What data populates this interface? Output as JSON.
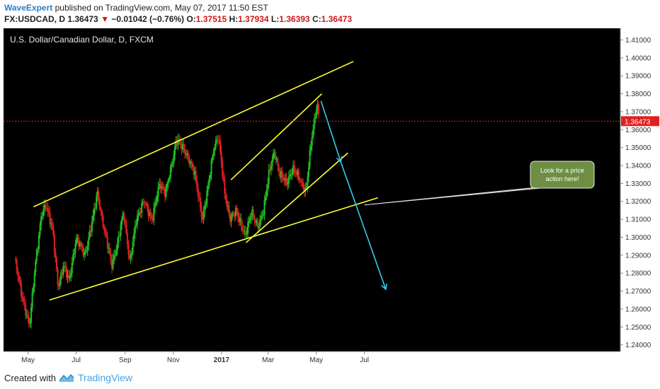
{
  "header": {
    "author": "WaveExpert",
    "published_text": "published on TradingView.com, May 07, 2017 11:50 EST",
    "symbol_text": "FX:USDCAD, D",
    "last_price": "1.36473",
    "change_text": "−0.01042 (−0.76%)",
    "o_label": "O:",
    "o_value": "1.37515",
    "h_label": "H:",
    "h_value": "1.37934",
    "l_label": "L:",
    "l_value": "1.36393",
    "c_label": "C:",
    "c_value": "1.36473"
  },
  "footer": {
    "created_with": "Created with",
    "brand": "TradingView"
  },
  "colors": {
    "background": "#000000",
    "up_candle": "#22c022",
    "down_candle": "#e02020",
    "trendline": "#ffff33",
    "projection": "#33ccee",
    "price_line": "#e02020",
    "callout_fill": "#6e8f43"
  },
  "chart_data": {
    "type": "candlestick",
    "title": "U.S. Dollar/Canadian Dollar, D, FXCM",
    "xlabel": "",
    "ylabel": "",
    "ylim": [
      1.2363,
      1.4165
    ],
    "y_ticks": [
      "1.41000",
      "1.40000",
      "1.39000",
      "1.38000",
      "1.37000",
      "1.36000",
      "1.35000",
      "1.34000",
      "1.33000",
      "1.32000",
      "1.31000",
      "1.30000",
      "1.29000",
      "1.28000",
      "1.27000",
      "1.26000",
      "1.25000",
      "1.24000"
    ],
    "x_ticks": [
      {
        "label": "May",
        "date": "2016-05-01"
      },
      {
        "label": "Jul",
        "date": "2016-07-01"
      },
      {
        "label": "Sep",
        "date": "2016-09-01"
      },
      {
        "label": "Nov",
        "date": "2016-11-01"
      },
      {
        "label": "2017",
        "date": "2017-01-01"
      },
      {
        "label": "Mar",
        "date": "2017-03-01"
      },
      {
        "label": "May",
        "date": "2017-05-01"
      },
      {
        "label": "Jul",
        "date": "2017-07-01"
      }
    ],
    "current_price": "1.36473",
    "price_path": [
      [
        "2016-04-14",
        1.288
      ],
      [
        "2016-04-22",
        1.27
      ],
      [
        "2016-05-03",
        1.25
      ],
      [
        "2016-05-10",
        1.285
      ],
      [
        "2016-05-18",
        1.312
      ],
      [
        "2016-05-24",
        1.318
      ],
      [
        "2016-06-01",
        1.305
      ],
      [
        "2016-06-08",
        1.272
      ],
      [
        "2016-06-15",
        1.285
      ],
      [
        "2016-06-22",
        1.275
      ],
      [
        "2016-07-01",
        1.3
      ],
      [
        "2016-07-12",
        1.29
      ],
      [
        "2016-07-22",
        1.31
      ],
      [
        "2016-07-28",
        1.325
      ],
      [
        "2016-08-05",
        1.305
      ],
      [
        "2016-08-15",
        1.285
      ],
      [
        "2016-08-22",
        1.295
      ],
      [
        "2016-08-30",
        1.315
      ],
      [
        "2016-09-07",
        1.285
      ],
      [
        "2016-09-15",
        1.31
      ],
      [
        "2016-09-25",
        1.32
      ],
      [
        "2016-10-05",
        1.31
      ],
      [
        "2016-10-15",
        1.33
      ],
      [
        "2016-10-22",
        1.325
      ],
      [
        "2016-10-30",
        1.34
      ],
      [
        "2016-11-05",
        1.355
      ],
      [
        "2016-11-12",
        1.35
      ],
      [
        "2016-11-20",
        1.345
      ],
      [
        "2016-11-28",
        1.335
      ],
      [
        "2016-12-08",
        1.31
      ],
      [
        "2016-12-14",
        1.325
      ],
      [
        "2016-12-22",
        1.35
      ],
      [
        "2016-12-28",
        1.356
      ],
      [
        "2017-01-05",
        1.325
      ],
      [
        "2017-01-12",
        1.31
      ],
      [
        "2017-01-20",
        1.315
      ],
      [
        "2017-01-31",
        1.3
      ],
      [
        "2017-02-08",
        1.315
      ],
      [
        "2017-02-16",
        1.305
      ],
      [
        "2017-02-23",
        1.315
      ],
      [
        "2017-03-02",
        1.335
      ],
      [
        "2017-03-09",
        1.348
      ],
      [
        "2017-03-16",
        1.335
      ],
      [
        "2017-03-24",
        1.33
      ],
      [
        "2017-04-01",
        1.338
      ],
      [
        "2017-04-10",
        1.333
      ],
      [
        "2017-04-18",
        1.325
      ],
      [
        "2017-04-25",
        1.355
      ],
      [
        "2017-05-02",
        1.375
      ],
      [
        "2017-05-05",
        1.3647
      ]
    ],
    "drawings": [
      {
        "name": "upper-channel-line",
        "from": [
          "2016-05-08",
          1.317
        ],
        "to": [
          "2017-06-17",
          1.398
        ]
      },
      {
        "name": "lower-channel-line",
        "from": [
          "2016-05-28",
          1.265
        ],
        "to": [
          "2017-07-18",
          1.322
        ]
      },
      {
        "name": "wedge-upper-line",
        "from": [
          "2017-01-13",
          1.332
        ],
        "to": [
          "2017-05-08",
          1.38
        ]
      },
      {
        "name": "wedge-lower-line",
        "from": [
          "2017-02-01",
          1.297
        ],
        "to": [
          "2017-06-10",
          1.347
        ]
      }
    ],
    "projection": {
      "from": [
        "2017-05-07",
        1.376
      ],
      "via": [
        "2017-06-01",
        1.342
      ],
      "to": [
        "2017-07-28",
        1.271
      ]
    },
    "annotation": {
      "line1": "Look for a price",
      "line2": "action here!",
      "points_to": [
        "2017-07-01",
        1.318
      ]
    }
  }
}
